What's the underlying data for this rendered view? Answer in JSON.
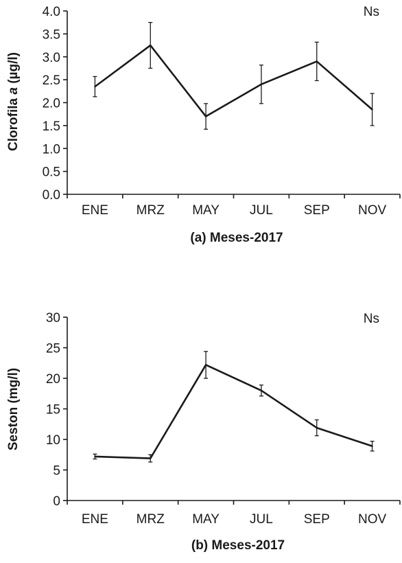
{
  "chart_data": [
    {
      "type": "line",
      "categories": [
        "ENE",
        "MRZ",
        "MAY",
        "JUL",
        "SEP",
        "NOV"
      ],
      "series": [
        {
          "values": [
            2.35,
            3.25,
            1.7,
            2.4,
            2.9,
            1.85
          ],
          "error": [
            0.22,
            0.5,
            0.28,
            0.42,
            0.42,
            0.35
          ]
        }
      ],
      "xlabel": "(a) Meses-2017",
      "ylabel_prefix": "Clorofila ",
      "ylabel_italic": "a",
      "ylabel_suffix": " (µg/l)",
      "ylim": [
        0,
        4
      ],
      "yticks": [
        "0.0",
        "0.5",
        "1.0",
        "1.5",
        "2.0",
        "2.5",
        "3.0",
        "3.5",
        "4.0"
      ],
      "annotation": "Ns",
      "grid": false,
      "color": "#1a1a1a"
    },
    {
      "type": "line",
      "categories": [
        "ENE",
        "MRZ",
        "MAY",
        "JUL",
        "SEP",
        "NOV"
      ],
      "series": [
        {
          "values": [
            7.2,
            6.9,
            22.2,
            18.0,
            11.9,
            8.9
          ],
          "error": [
            0.4,
            0.6,
            2.2,
            0.9,
            1.3,
            0.8
          ]
        }
      ],
      "xlabel": "(b) Meses-2017",
      "ylabel": "Seston (mg/l)",
      "ylim": [
        0,
        30
      ],
      "yticks": [
        "0",
        "5",
        "10",
        "15",
        "20",
        "25",
        "30"
      ],
      "annotation": "Ns",
      "grid": false,
      "color": "#1a1a1a"
    }
  ]
}
